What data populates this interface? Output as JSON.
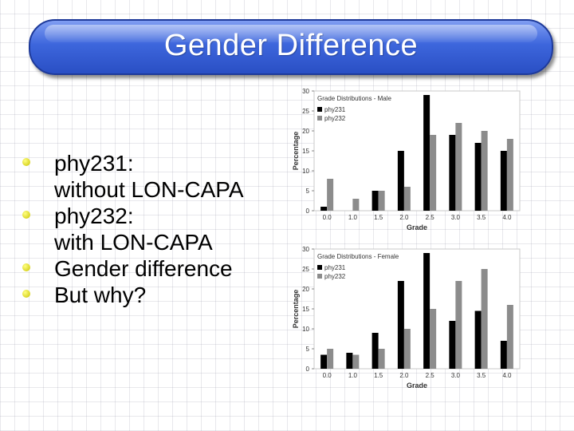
{
  "slide": {
    "title": "Gender Difference",
    "bullets": [
      {
        "lines": [
          "phy231:",
          "without LON-CAPA"
        ]
      },
      {
        "lines": [
          "phy232:",
          "with LON-CAPA"
        ]
      },
      {
        "lines": [
          "Gender difference"
        ]
      },
      {
        "lines": [
          "But why?"
        ]
      }
    ],
    "colors": {
      "accent": "#3d66dc",
      "bullet": "#e6e000",
      "phy231": "#000000",
      "phy232": "#8c8c8c"
    }
  },
  "chart_data": [
    {
      "type": "bar",
      "title": "Grade Distributions - Male",
      "xlabel": "Grade",
      "ylabel": "Percentage",
      "ylim": [
        0,
        30
      ],
      "yticks": [
        0,
        5,
        10,
        15,
        20,
        25,
        30
      ],
      "categories": [
        "0.0",
        "1.0",
        "1.5",
        "2.0",
        "2.5",
        "3.0",
        "3.5",
        "4.0"
      ],
      "series": [
        {
          "name": "phy231",
          "values": [
            1,
            0,
            5,
            15,
            29,
            19,
            17,
            15
          ]
        },
        {
          "name": "phy232",
          "values": [
            8,
            3,
            5,
            6,
            19,
            22,
            20,
            18
          ]
        }
      ],
      "legend": "top-left",
      "grid": false
    },
    {
      "type": "bar",
      "title": "Grade Distributions - Female",
      "xlabel": "Grade",
      "ylabel": "Percentage",
      "ylim": [
        0,
        30
      ],
      "yticks": [
        0,
        5,
        10,
        15,
        20,
        25,
        30
      ],
      "categories": [
        "0.0",
        "1.0",
        "1.5",
        "2.0",
        "2.5",
        "3.0",
        "3.5",
        "4.0"
      ],
      "series": [
        {
          "name": "phy231",
          "values": [
            3.5,
            4,
            9,
            22,
            29,
            12,
            14.5,
            7
          ]
        },
        {
          "name": "phy232",
          "values": [
            5,
            3.5,
            5,
            10,
            15,
            22,
            25,
            16
          ]
        }
      ],
      "legend": "top-left",
      "grid": false
    }
  ]
}
